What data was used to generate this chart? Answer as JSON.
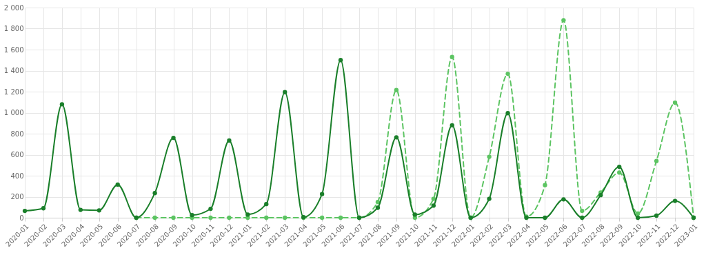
{
  "chart_data": {
    "type": "line",
    "categories": [
      "2020-01",
      "2020-02",
      "2020-03",
      "2020-04",
      "2020-05",
      "2020-06",
      "2020-07",
      "2020-08",
      "2020-09",
      "2020-10",
      "2020-11",
      "2020-12",
      "2021-01",
      "2021-02",
      "2021-03",
      "2021-04",
      "2021-05",
      "2021-06",
      "2021-07",
      "2021-08",
      "2021-09",
      "2021-10",
      "2021-11",
      "2021-12",
      "2022-01",
      "2022-02",
      "2022-03",
      "2022-04",
      "2022-05",
      "2022-06",
      "2022-07",
      "2022-08",
      "2022-09",
      "2022-10",
      "2022-11",
      "2022-12",
      "2023-01"
    ],
    "series": [
      {
        "color": "#5cc462",
        "line_style": "dashed",
        "values": [
          null,
          null,
          null,
          null,
          null,
          null,
          0,
          0,
          0,
          0,
          0,
          0,
          0,
          0,
          0,
          0,
          0,
          0,
          0,
          150,
          1215,
          0,
          180,
          1530,
          0,
          580,
          1370,
          10,
          310,
          1880,
          65,
          240,
          430,
          40,
          540,
          1095,
          0
        ]
      },
      {
        "color": "#1a7f2a",
        "line_style": "solid",
        "values": [
          65,
          90,
          1080,
          75,
          70,
          315,
          0,
          235,
          760,
          25,
          85,
          735,
          30,
          130,
          1195,
          5,
          225,
          1500,
          0,
          95,
          765,
          30,
          115,
          880,
          0,
          180,
          995,
          0,
          0,
          175,
          0,
          215,
          485,
          0,
          20,
          160,
          0
        ]
      }
    ],
    "ylim": [
      0,
      2000
    ],
    "yticks": [
      0,
      200,
      400,
      600,
      800,
      {
        "value": 1000,
        "label": "1 000"
      },
      {
        "value": 1200,
        "label": "1 200"
      },
      {
        "value": 1400,
        "label": "1 400"
      },
      {
        "value": 1600,
        "label": "1 600"
      },
      {
        "value": 1800,
        "label": "1 800"
      },
      {
        "value": 2000,
        "label": "2 000"
      }
    ],
    "grid": true,
    "marker": "circle"
  }
}
